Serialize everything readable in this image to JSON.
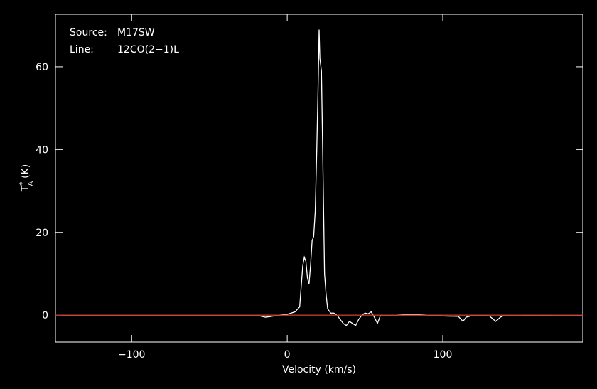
{
  "chart_data": {
    "type": "line",
    "xlabel": "Velocity (km/s)",
    "ylabel": {
      "base": "T",
      "sup": "*",
      "sub": "A",
      "unit": "(K)"
    },
    "annotations": [
      {
        "key": "Source:",
        "value": "M17SW"
      },
      {
        "key": "Line:",
        "value": "12CO(2−1)L"
      }
    ],
    "xlim": [
      -149,
      190
    ],
    "ylim": [
      -6.5,
      72.7
    ],
    "xticks": [
      {
        "value": -100,
        "label": "−100"
      },
      0,
      100
    ],
    "yticks": [
      0,
      20,
      40,
      60
    ],
    "baseline": {
      "value": 0,
      "color": "#c0392b"
    },
    "series": [
      {
        "name": "spectrum",
        "color": "#ffffff",
        "x": [
          -145,
          -120,
          -90,
          -60,
          -30,
          -20,
          -14,
          -10,
          -5,
          0,
          5,
          8,
          9,
          10,
          11,
          12,
          13,
          14,
          15,
          16,
          17,
          18,
          19,
          20,
          20.5,
          21,
          22,
          23,
          24,
          25,
          26,
          28,
          30,
          32,
          34,
          36,
          38,
          40,
          42,
          44,
          46,
          48,
          50,
          52,
          54,
          56,
          58,
          60,
          65,
          70,
          80,
          90,
          100,
          110,
          113,
          115,
          120,
          130,
          134,
          137,
          140,
          150,
          160,
          170,
          180,
          190
        ],
        "values": [
          0,
          0,
          0,
          0,
          0,
          0,
          -0.5,
          -0.3,
          0,
          0.2,
          0.8,
          2,
          7,
          12,
          14,
          13,
          9,
          7.5,
          12,
          18,
          19,
          25,
          40,
          58,
          69,
          62,
          59,
          35,
          10,
          5,
          1.5,
          0.5,
          0.5,
          0,
          -1,
          -2,
          -2.5,
          -1.5,
          -2,
          -2.5,
          -1,
          0,
          0.5,
          0.3,
          0.8,
          -0.5,
          -2,
          0,
          0,
          0,
          0.2,
          0,
          -0.2,
          -0.3,
          -1.5,
          -0.5,
          0,
          -0.2,
          -1.5,
          -0.5,
          0,
          0,
          -0.2,
          0,
          0,
          0
        ]
      }
    ]
  }
}
